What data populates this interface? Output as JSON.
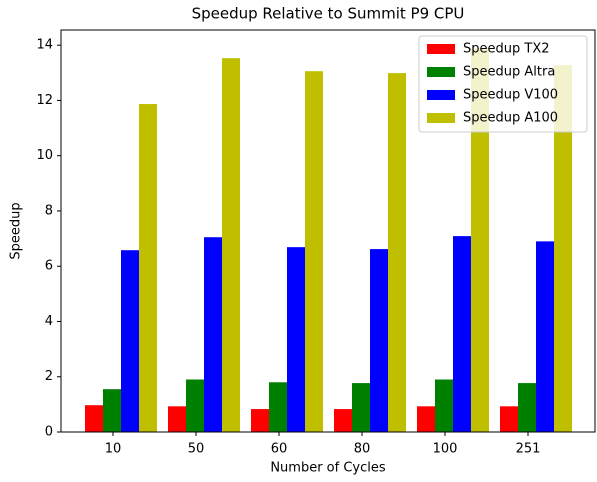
{
  "chart_data": {
    "type": "bar",
    "title": "Speedup Relative to Summit P9 CPU",
    "x_label": "Number of Cycles",
    "y_label": "Speedup",
    "categories": [
      "10",
      "50",
      "60",
      "80",
      "100",
      "251"
    ],
    "series": [
      {
        "name": "Speedup TX2",
        "color": "#ff0000",
        "values": [
          0.97,
          0.93,
          0.83,
          0.83,
          0.93,
          0.93
        ]
      },
      {
        "name": "Speedup Altra",
        "color": "#008000",
        "values": [
          1.55,
          1.9,
          1.8,
          1.77,
          1.9,
          1.77
        ]
      },
      {
        "name": "Speedup V100",
        "color": "#0000ff",
        "values": [
          6.58,
          7.05,
          6.69,
          6.62,
          7.09,
          6.9
        ]
      },
      {
        "name": "Speedup A100",
        "color": "#bfbf00",
        "values": [
          11.87,
          13.53,
          13.06,
          12.99,
          13.9,
          13.28
        ]
      }
    ],
    "ylim": [
      0,
      14.55
    ],
    "yticks": [
      0,
      2,
      4,
      6,
      8,
      10,
      12,
      14
    ],
    "legend": "upper right"
  }
}
